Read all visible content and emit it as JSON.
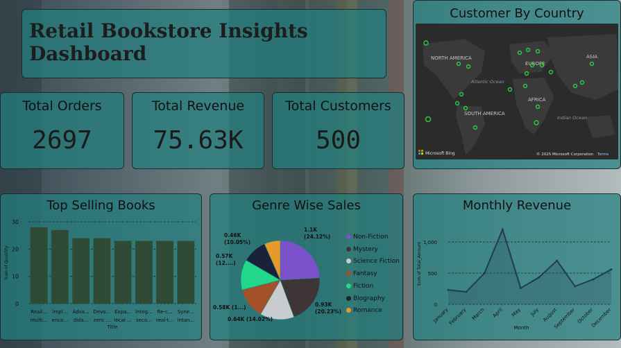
{
  "header": {
    "title": "Retail Bookstore Insights Dashboard"
  },
  "kpis": [
    {
      "label": "Total Orders",
      "value": "2697"
    },
    {
      "label": "Total Revenue",
      "value": "75.63K"
    },
    {
      "label": "Total Customers",
      "value": "500"
    }
  ],
  "map": {
    "title": "Customer By Country",
    "labels": [
      "NORTH AMERICA",
      "EUROPE",
      "ASIA",
      "AFRICA",
      "SOUTH AMERICA",
      "Atlantic Ocean",
      "Indian Ocean"
    ],
    "bing_label": "Microsoft Bing",
    "copyright": "© 2025 Microsoft Corporation",
    "terms": "Terms"
  },
  "colors": {
    "bar": "#2f4a35",
    "marker": "#2ecc40",
    "line": "#1f3b57",
    "panel": "#228080"
  },
  "chart_data": [
    {
      "type": "bar",
      "title": "Top Selling Books",
      "categories_line1": [
        "Reali...",
        "Impl...",
        "Adva...",
        "Devo...",
        "Expa...",
        "Integ...",
        "Re-c...",
        "Syne..."
      ],
      "categories_line2": [
        "multi...",
        "enco...",
        "dida...",
        "zero ...",
        "local ...",
        "seco...",
        "real-t...",
        "intan..."
      ],
      "values": [
        28,
        27,
        24,
        24,
        23,
        23,
        23,
        23
      ],
      "xlabel": "Title",
      "ylabel": "Sum of Quantity",
      "ylim": [
        0,
        30
      ],
      "yticks": [
        "0",
        "10",
        "20",
        "30"
      ]
    },
    {
      "type": "pie",
      "title": "Genre Wise Sales",
      "slices": [
        {
          "name": "Non-Fiction",
          "percent": 24.12,
          "label_a": "1.1K",
          "label_b": "(24.12%)",
          "color": "#7b52c9"
        },
        {
          "name": "Mystery",
          "percent": 20.23,
          "label_a": "0.93K",
          "label_b": "(20.23%)",
          "color": "#3d3536"
        },
        {
          "name": "Science Fiction",
          "percent": 14.02,
          "label_a": "0.64K (14.02%)",
          "label_b": "",
          "color": "#c9cccf"
        },
        {
          "name": "Fantasy",
          "percent": 12.6,
          "label_a": "0.58K (1...)",
          "label_b": "",
          "color": "#a4512a"
        },
        {
          "name": "Fiction",
          "percent": 12.4,
          "label_a": "0.57K",
          "label_b": "(12....)",
          "color": "#22d88b"
        },
        {
          "name": "Biography",
          "percent": 10.05,
          "label_a": "0.46K",
          "label_b": "(10.05%)",
          "color": "#1a2238"
        },
        {
          "name": "Romance",
          "percent": 6.58,
          "label_a": "",
          "label_b": "",
          "color": "#e69a2a"
        }
      ]
    },
    {
      "type": "line",
      "title": "Monthly Revenue",
      "categories": [
        "January",
        "February",
        "March",
        "April",
        "May",
        "July",
        "August",
        "September",
        "October",
        "December"
      ],
      "values": [
        230,
        200,
        500,
        1200,
        260,
        430,
        700,
        290,
        400,
        560
      ],
      "xlabel": "Month",
      "ylabel": "Sum of Total_Amount",
      "ylim": [
        0,
        1300
      ],
      "yticks": [
        "0",
        "500",
        "1,000"
      ]
    }
  ]
}
